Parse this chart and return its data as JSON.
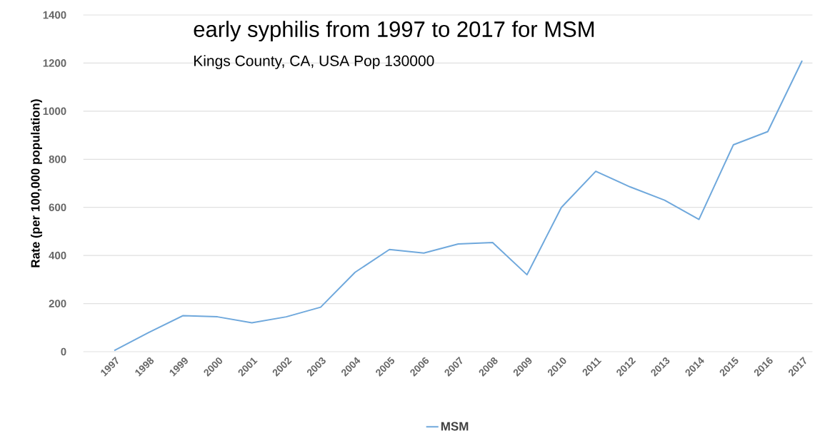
{
  "chart_data": {
    "type": "line",
    "title": "early syphilis from 1997 to 2017 for MSM",
    "subtitle": "Kings County, CA, USA Pop 130000",
    "ylabel": "Rate (per 100,000 population)",
    "categories": [
      "1997",
      "1998",
      "1999",
      "2000",
      "2001",
      "2002",
      "2003",
      "2004",
      "2005",
      "2006",
      "2007",
      "2008",
      "2009",
      "2010",
      "2011",
      "2012",
      "2013",
      "2014",
      "2015",
      "2016",
      "2017"
    ],
    "series": [
      {
        "name": "MSM",
        "color": "#6fa8dc",
        "values": [
          5,
          80,
          150,
          145,
          120,
          145,
          185,
          330,
          425,
          410,
          448,
          454,
          320,
          600,
          750,
          685,
          630,
          550,
          860,
          915,
          1210
        ]
      }
    ],
    "ylim": [
      0,
      1400
    ],
    "yticks": [
      0,
      200,
      400,
      600,
      800,
      1000,
      1200,
      1400
    ],
    "grid": "y",
    "legend": "bottom"
  }
}
